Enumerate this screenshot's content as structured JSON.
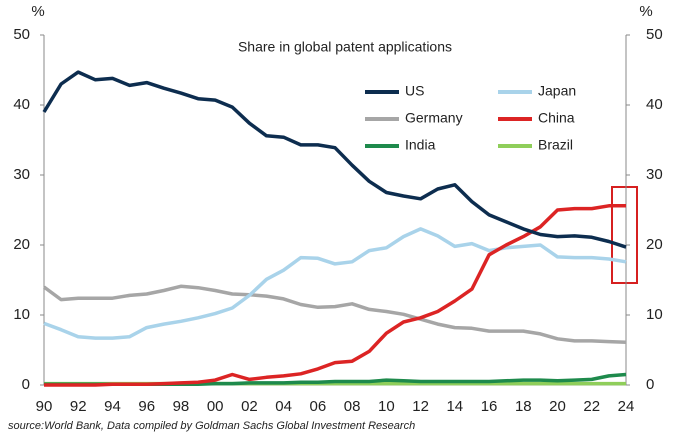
{
  "chart_data": {
    "type": "line",
    "title": "Share in global patent applications",
    "y_label": "%",
    "y2_label": "%",
    "categories": [
      "90",
      null,
      "92",
      null,
      "94",
      null,
      "96",
      null,
      "98",
      null,
      "00",
      null,
      "02",
      null,
      "04",
      null,
      "06",
      null,
      "08",
      null,
      "10",
      null,
      "12",
      null,
      "14",
      null,
      "16",
      null,
      "18",
      null,
      "20",
      null,
      "22",
      null,
      "24"
    ],
    "ylim": [
      0,
      50
    ],
    "yticks": [
      0,
      10,
      20,
      30,
      40,
      50
    ],
    "y2lim": [
      0,
      50
    ],
    "y2ticks": [
      0,
      10,
      20,
      30,
      40,
      50
    ],
    "grid": false,
    "series": [
      {
        "name": "US",
        "color": "#0d2d4f",
        "values": [
          39,
          43,
          44.7,
          43.6,
          43.8,
          42.8,
          43.2,
          42.4,
          41.7,
          40.9,
          40.7,
          39.7,
          37.4,
          35.6,
          35.4,
          34.3,
          34.3,
          33.9,
          31.4,
          29.1,
          27.5,
          27,
          26.6,
          28,
          28.6,
          26.2,
          24.3,
          23.3,
          22.3,
          21.5,
          21.2,
          21.3,
          21.1,
          20.5,
          19.7
        ]
      },
      {
        "name": "Japan",
        "color": "#a9d3ea",
        "values": [
          8.8,
          7.9,
          6.9,
          6.7,
          6.7,
          6.9,
          8.2,
          8.7,
          9.1,
          9.6,
          10.2,
          11,
          12.8,
          15.1,
          16.4,
          18.2,
          18.1,
          17.3,
          17.6,
          19.2,
          19.6,
          21.2,
          22.3,
          21.3,
          19.8,
          20.2,
          19.2,
          19.6,
          19.8,
          20,
          18.3,
          18.2,
          18.2,
          18,
          17.6
        ]
      },
      {
        "name": "Germany",
        "color": "#a6a6a6",
        "values": [
          14,
          12.2,
          12.4,
          12.4,
          12.4,
          12.8,
          13,
          13.5,
          14.1,
          13.9,
          13.5,
          13,
          12.9,
          12.7,
          12.3,
          11.5,
          11.1,
          11.2,
          11.6,
          10.8,
          10.5,
          10.1,
          9.4,
          8.7,
          8.2,
          8.1,
          7.7,
          7.7,
          7.7,
          7.3,
          6.6,
          6.3,
          6.3,
          6.2,
          6.1
        ]
      },
      {
        "name": "China",
        "color": "#dc2424",
        "values": [
          0,
          0,
          0,
          0,
          0.1,
          0.1,
          0.1,
          0.2,
          0.3,
          0.4,
          0.7,
          1.5,
          0.8,
          1.1,
          1.3,
          1.6,
          2.3,
          3.2,
          3.4,
          4.8,
          7.4,
          9,
          9.6,
          10.5,
          12,
          13.7,
          18.6,
          20,
          21.2,
          22.6,
          25,
          25.2,
          25.2,
          25.6,
          25.6
        ]
      },
      {
        "name": "India",
        "color": "#1e8a4c",
        "values": [
          0.1,
          0.1,
          0.1,
          0.1,
          0.1,
          0.1,
          0.1,
          0.1,
          0.1,
          0.1,
          0.2,
          0.2,
          0.3,
          0.3,
          0.3,
          0.4,
          0.4,
          0.5,
          0.5,
          0.5,
          0.7,
          0.6,
          0.5,
          0.5,
          0.5,
          0.5,
          0.5,
          0.6,
          0.7,
          0.7,
          0.6,
          0.7,
          0.8,
          1.3,
          1.5
        ]
      },
      {
        "name": "Brazil",
        "color": "#8fce5a",
        "values": [
          0.2,
          0.2,
          0.2,
          0.2,
          0.2,
          0.2,
          0.2,
          0.2,
          0.2,
          0.2,
          0.2,
          0.2,
          0.2,
          0.2,
          0.2,
          0.2,
          0.2,
          0.2,
          0.2,
          0.2,
          0.2,
          0.2,
          0.2,
          0.2,
          0.2,
          0.2,
          0.2,
          0.2,
          0.2,
          0.2,
          0.2,
          0.2,
          0.2,
          0.2,
          0.2
        ]
      }
    ],
    "source": "source:World Bank, Data compiled by Goldman Sachs Global Investment Research"
  }
}
